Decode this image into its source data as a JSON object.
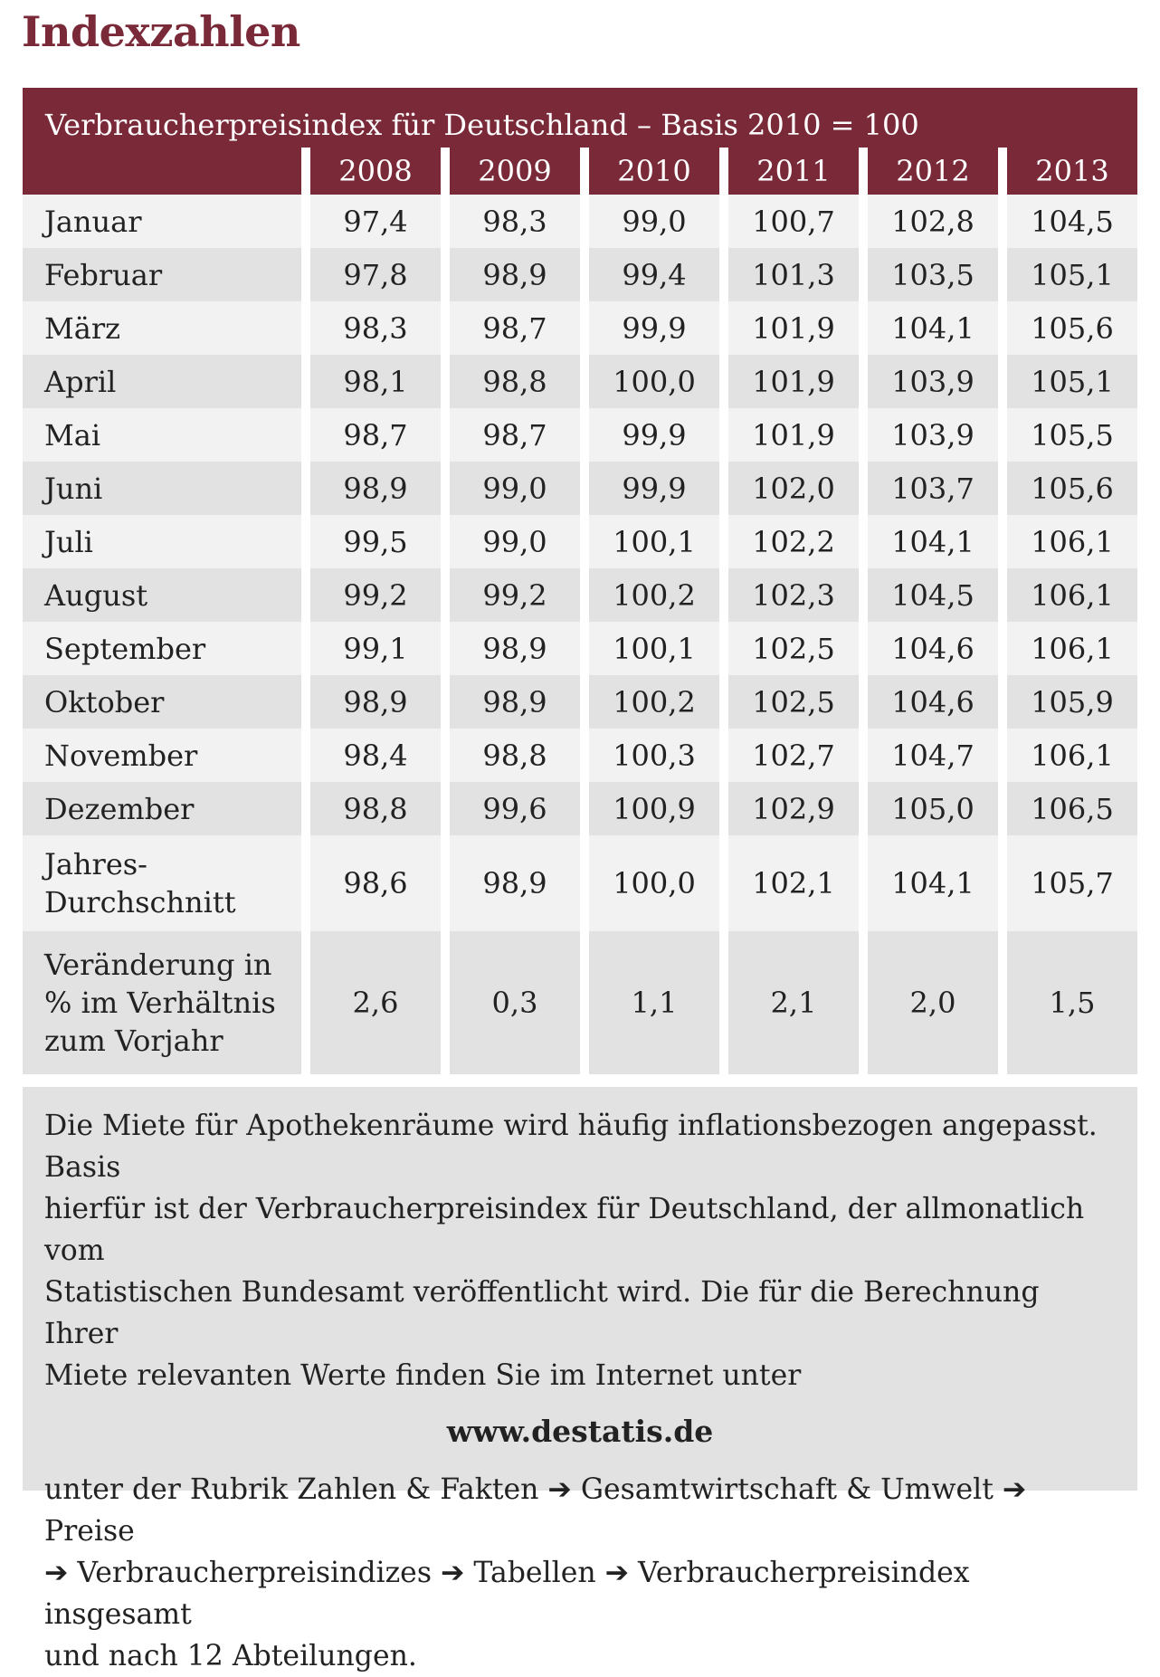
{
  "title": "Indexzahlen",
  "table": {
    "caption": "Verbraucherpreisindex für Deutschland – Basis 2010 = 100",
    "years": [
      "2008",
      "2009",
      "2010",
      "2011",
      "2012",
      "2013"
    ],
    "rows": [
      {
        "label": "Januar",
        "values": [
          "97,4",
          "98,3",
          "99,0",
          "100,7",
          "102,8",
          "104,5"
        ]
      },
      {
        "label": "Februar",
        "values": [
          "97,8",
          "98,9",
          "99,4",
          "101,3",
          "103,5",
          "105,1"
        ]
      },
      {
        "label": "März",
        "values": [
          "98,3",
          "98,7",
          "99,9",
          "101,9",
          "104,1",
          "105,6"
        ]
      },
      {
        "label": "April",
        "values": [
          "98,1",
          "98,8",
          "100,0",
          "101,9",
          "103,9",
          "105,1"
        ]
      },
      {
        "label": "Mai",
        "values": [
          "98,7",
          "98,7",
          "99,9",
          "101,9",
          "103,9",
          "105,5"
        ]
      },
      {
        "label": "Juni",
        "values": [
          "98,9",
          "99,0",
          "99,9",
          "102,0",
          "103,7",
          "105,6"
        ]
      },
      {
        "label": "Juli",
        "values": [
          "99,5",
          "99,0",
          "100,1",
          "102,2",
          "104,1",
          "106,1"
        ]
      },
      {
        "label": "August",
        "values": [
          "99,2",
          "99,2",
          "100,2",
          "102,3",
          "104,5",
          "106,1"
        ]
      },
      {
        "label": "September",
        "values": [
          "99,1",
          "98,9",
          "100,1",
          "102,5",
          "104,6",
          "106,1"
        ]
      },
      {
        "label": "Oktober",
        "values": [
          "98,9",
          "98,9",
          "100,2",
          "102,5",
          "104,6",
          "105,9"
        ]
      },
      {
        "label": "November",
        "values": [
          "98,4",
          "98,8",
          "100,3",
          "102,7",
          "104,7",
          "106,1"
        ]
      },
      {
        "label": "Dezember",
        "values": [
          "98,8",
          "99,6",
          "100,9",
          "102,9",
          "105,0",
          "106,5"
        ]
      }
    ],
    "average": {
      "label_lines": [
        "Jahres-",
        "Durchschnitt"
      ],
      "values": [
        "98,6",
        "98,9",
        "100,0",
        "102,1",
        "104,1",
        "105,7"
      ]
    },
    "change": {
      "label_lines": [
        "Veränderung in",
        "% im Verhältnis",
        "zum Vorjahr"
      ],
      "values": [
        "2,6",
        "0,3",
        "1,1",
        "2,1",
        "2,0",
        "1,5"
      ]
    }
  },
  "note": {
    "paragraph1_lines": [
      "Die Miete für Apothekenräume wird häufig inflationsbezogen angepasst. Basis",
      "hierfür ist der Verbraucherpreisindex für Deutschland, der allmonatlich vom",
      "Statistischen Bundesamt veröffentlicht wird. Die für die Berechnung Ihrer",
      "Miete relevanten Werte finden Sie im Internet unter"
    ],
    "url": "www.destatis.de",
    "paragraph2_lines": [
      "unter der Rubrik Zahlen & Fakten ➔ Gesamtwirtschaft & Umwelt ➔ Preise",
      "➔ Verbraucherpreisindizes ➔ Tabellen ➔ Verbraucherpreisindex insgesamt",
      "und nach 12 Abteilungen."
    ]
  },
  "colors": {
    "accent": "#7a2938",
    "row_light": "#f2f2f2",
    "row_dark": "#e2e2e2"
  }
}
